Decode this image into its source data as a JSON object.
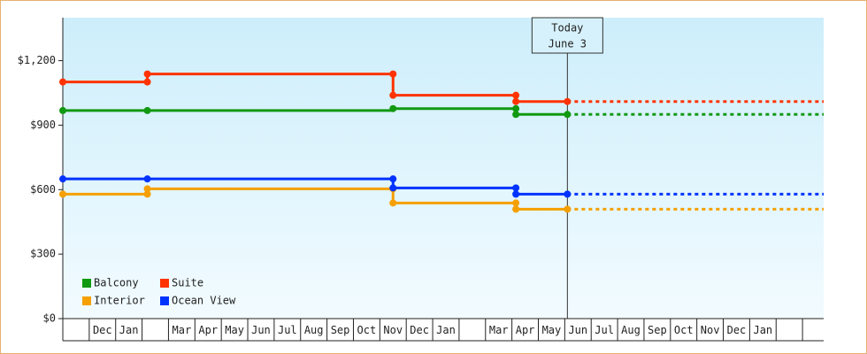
{
  "chart_data": {
    "type": "step-line",
    "categories": [
      null,
      "Dec",
      "Jan",
      null,
      "Mar",
      "Apr",
      "May",
      "Jun",
      "Jul",
      "Aug",
      "Sep",
      "Oct",
      "Nov",
      "Dec",
      "Jan",
      null,
      "Mar",
      "Apr",
      "May",
      "Jun",
      "Jul",
      "Aug",
      "Sep",
      "Oct",
      "Nov",
      "Dec",
      "Jan",
      null
    ],
    "xlim": [
      0,
      28.8
    ],
    "ylim": [
      0,
      1400
    ],
    "yticks": [
      {
        "value": 0,
        "label": "$0"
      },
      {
        "value": 300,
        "label": "$300"
      },
      {
        "value": 600,
        "label": "$600"
      },
      {
        "value": 900,
        "label": "$900"
      },
      {
        "value": 1200,
        "label": "$1,200"
      }
    ],
    "series": [
      {
        "name": "Balcony",
        "color": "#119911",
        "x": [
          0,
          3.2,
          12.5,
          17.15,
          17.15,
          19.1
        ],
        "values": [
          968,
          968,
          977,
          977,
          950,
          950
        ]
      },
      {
        "name": "Suite",
        "color": "#ff3300",
        "x": [
          0,
          3.2,
          3.2,
          12.5,
          12.5,
          17.15,
          17.15,
          19.1
        ],
        "values": [
          1101,
          1101,
          1138,
          1138,
          1039,
          1039,
          1010,
          1010
        ]
      },
      {
        "name": "Interior",
        "color": "#f5a000",
        "x": [
          0,
          3.2,
          3.2,
          12.5,
          12.5,
          17.15,
          17.15,
          19.1
        ],
        "values": [
          579,
          579,
          604,
          604,
          538,
          538,
          509,
          509
        ]
      },
      {
        "name": "Ocean View",
        "color": "#0033ff",
        "x": [
          0,
          3.2,
          12.5,
          12.5,
          17.15,
          17.15,
          19.1
        ],
        "values": [
          650,
          650,
          650,
          608,
          608,
          579,
          579
        ]
      }
    ],
    "today": {
      "x": 19.1,
      "lines": [
        "Today",
        "June 3"
      ]
    },
    "legend": "bottom-left"
  }
}
